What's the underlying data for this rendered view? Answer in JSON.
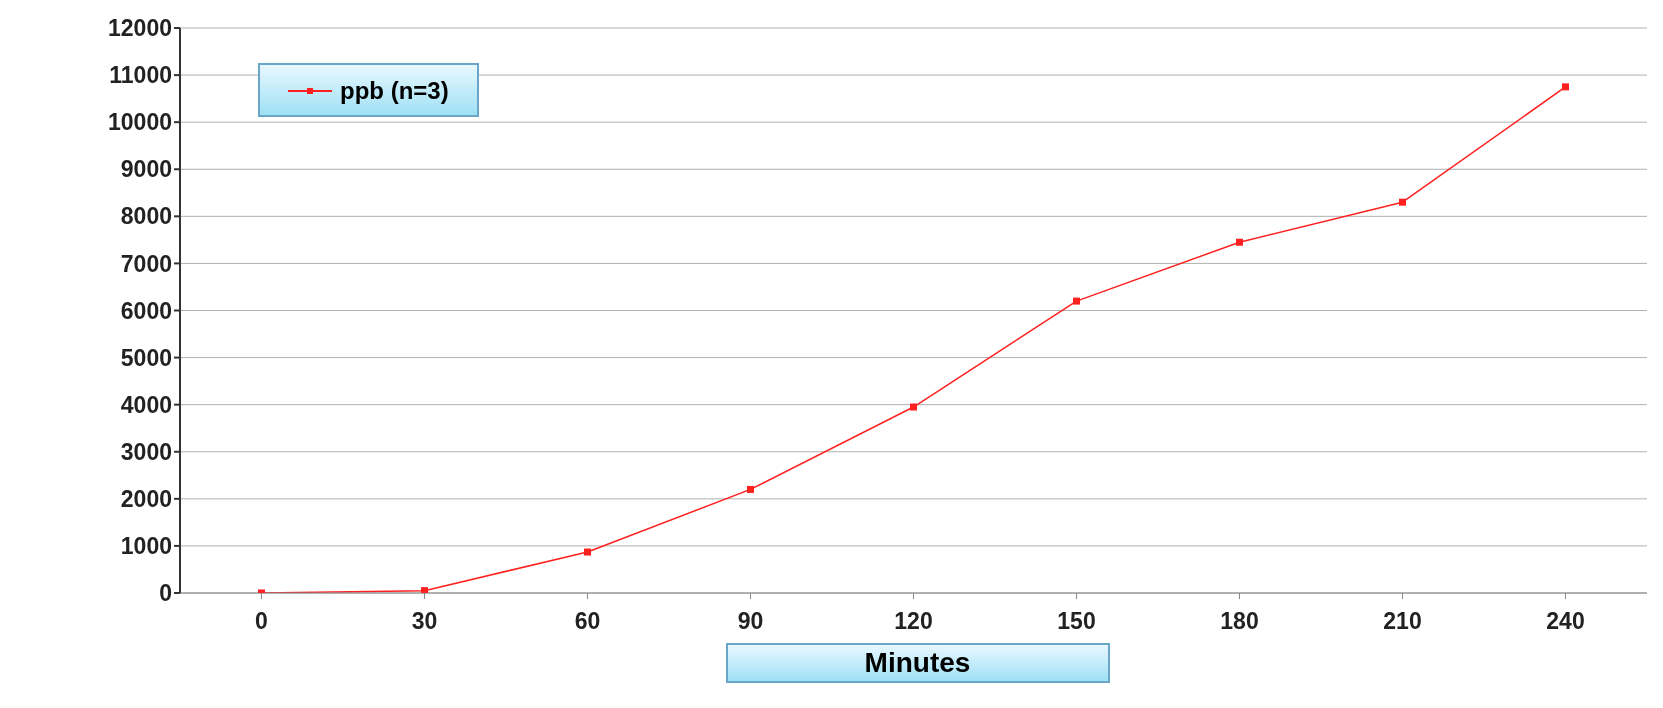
{
  "chart_data": {
    "type": "line",
    "xlabel": "Minutes",
    "categories": [
      "0",
      "30",
      "60",
      "90",
      "120",
      "150",
      "180",
      "210",
      "240"
    ],
    "series": [
      {
        "name": "ppb (n=3)",
        "color": "#ff2020",
        "values": [
          0,
          50,
          870,
          2200,
          3950,
          6200,
          7450,
          8300,
          10750
        ]
      }
    ],
    "ylim": [
      0,
      12000
    ],
    "yticks": [
      0,
      1000,
      2000,
      3000,
      4000,
      5000,
      6000,
      7000,
      8000,
      9000,
      10000,
      11000,
      12000
    ],
    "grid": "y",
    "legend": "top left",
    "marker": "square",
    "line_style": "solid"
  }
}
